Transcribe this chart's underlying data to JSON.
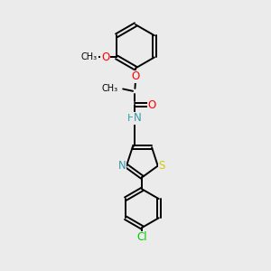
{
  "background_color": "#ebebeb",
  "atom_colors": {
    "O": "#ff0000",
    "N": "#3399aa",
    "S": "#cccc00",
    "Cl": "#00cc00",
    "C": "#000000",
    "H": "#000000"
  },
  "lw": 1.4,
  "fs": 8.5,
  "fs2": 7.5
}
